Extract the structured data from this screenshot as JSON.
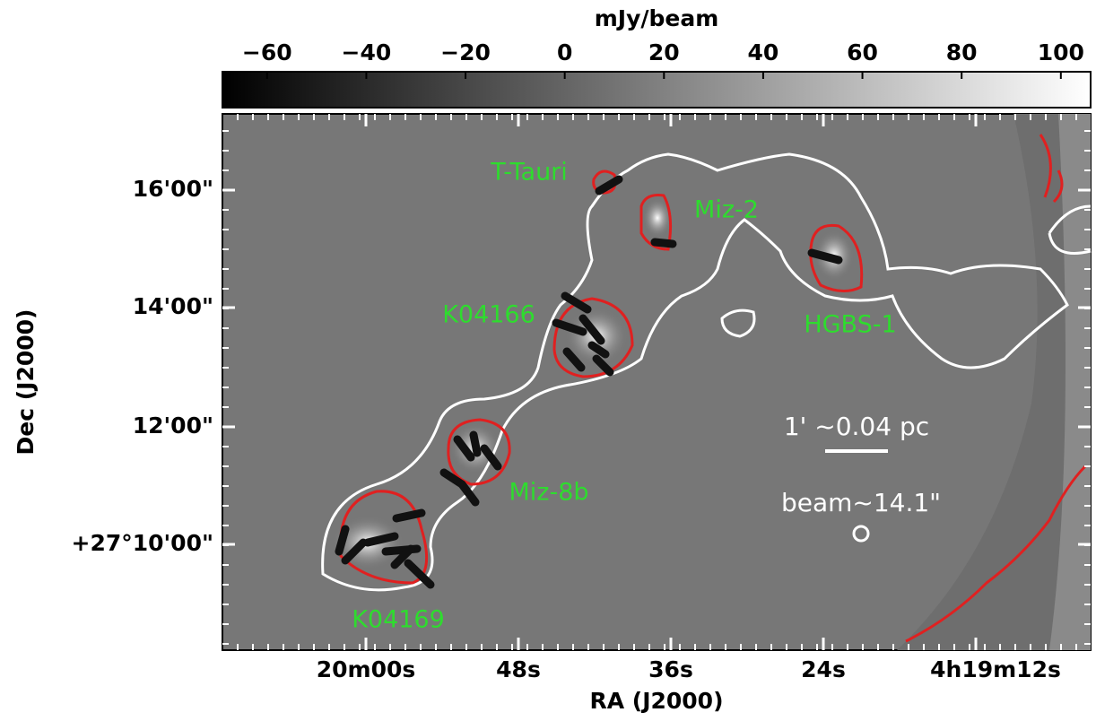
{
  "chart_data": {
    "type": "image",
    "colorbar": {
      "label": "mJy/beam",
      "lim": [
        -69,
        106
      ],
      "ticks": [
        {
          "value": -60,
          "label": "−60"
        },
        {
          "value": -40,
          "label": "−40"
        },
        {
          "value": -20,
          "label": "−20"
        },
        0,
        20,
        40,
        60,
        80,
        100
      ]
    },
    "xlabel": "RA (J2000)",
    "ylabel": "Dec (J2000)",
    "xticks": [
      "20m00s",
      "48s",
      "36s",
      "24s",
      "4h19m12s"
    ],
    "yticks": [
      "16'00\"",
      "14'00\"",
      "12'00\"",
      "+27°10'00\""
    ],
    "annotations": [
      "T-Tauri",
      "Miz-2",
      "K04166",
      "HGBS-1",
      "Miz-8b",
      "K04169"
    ],
    "scale_bar": "1' ~0.04 pc",
    "beam": "beam~14.1\""
  }
}
